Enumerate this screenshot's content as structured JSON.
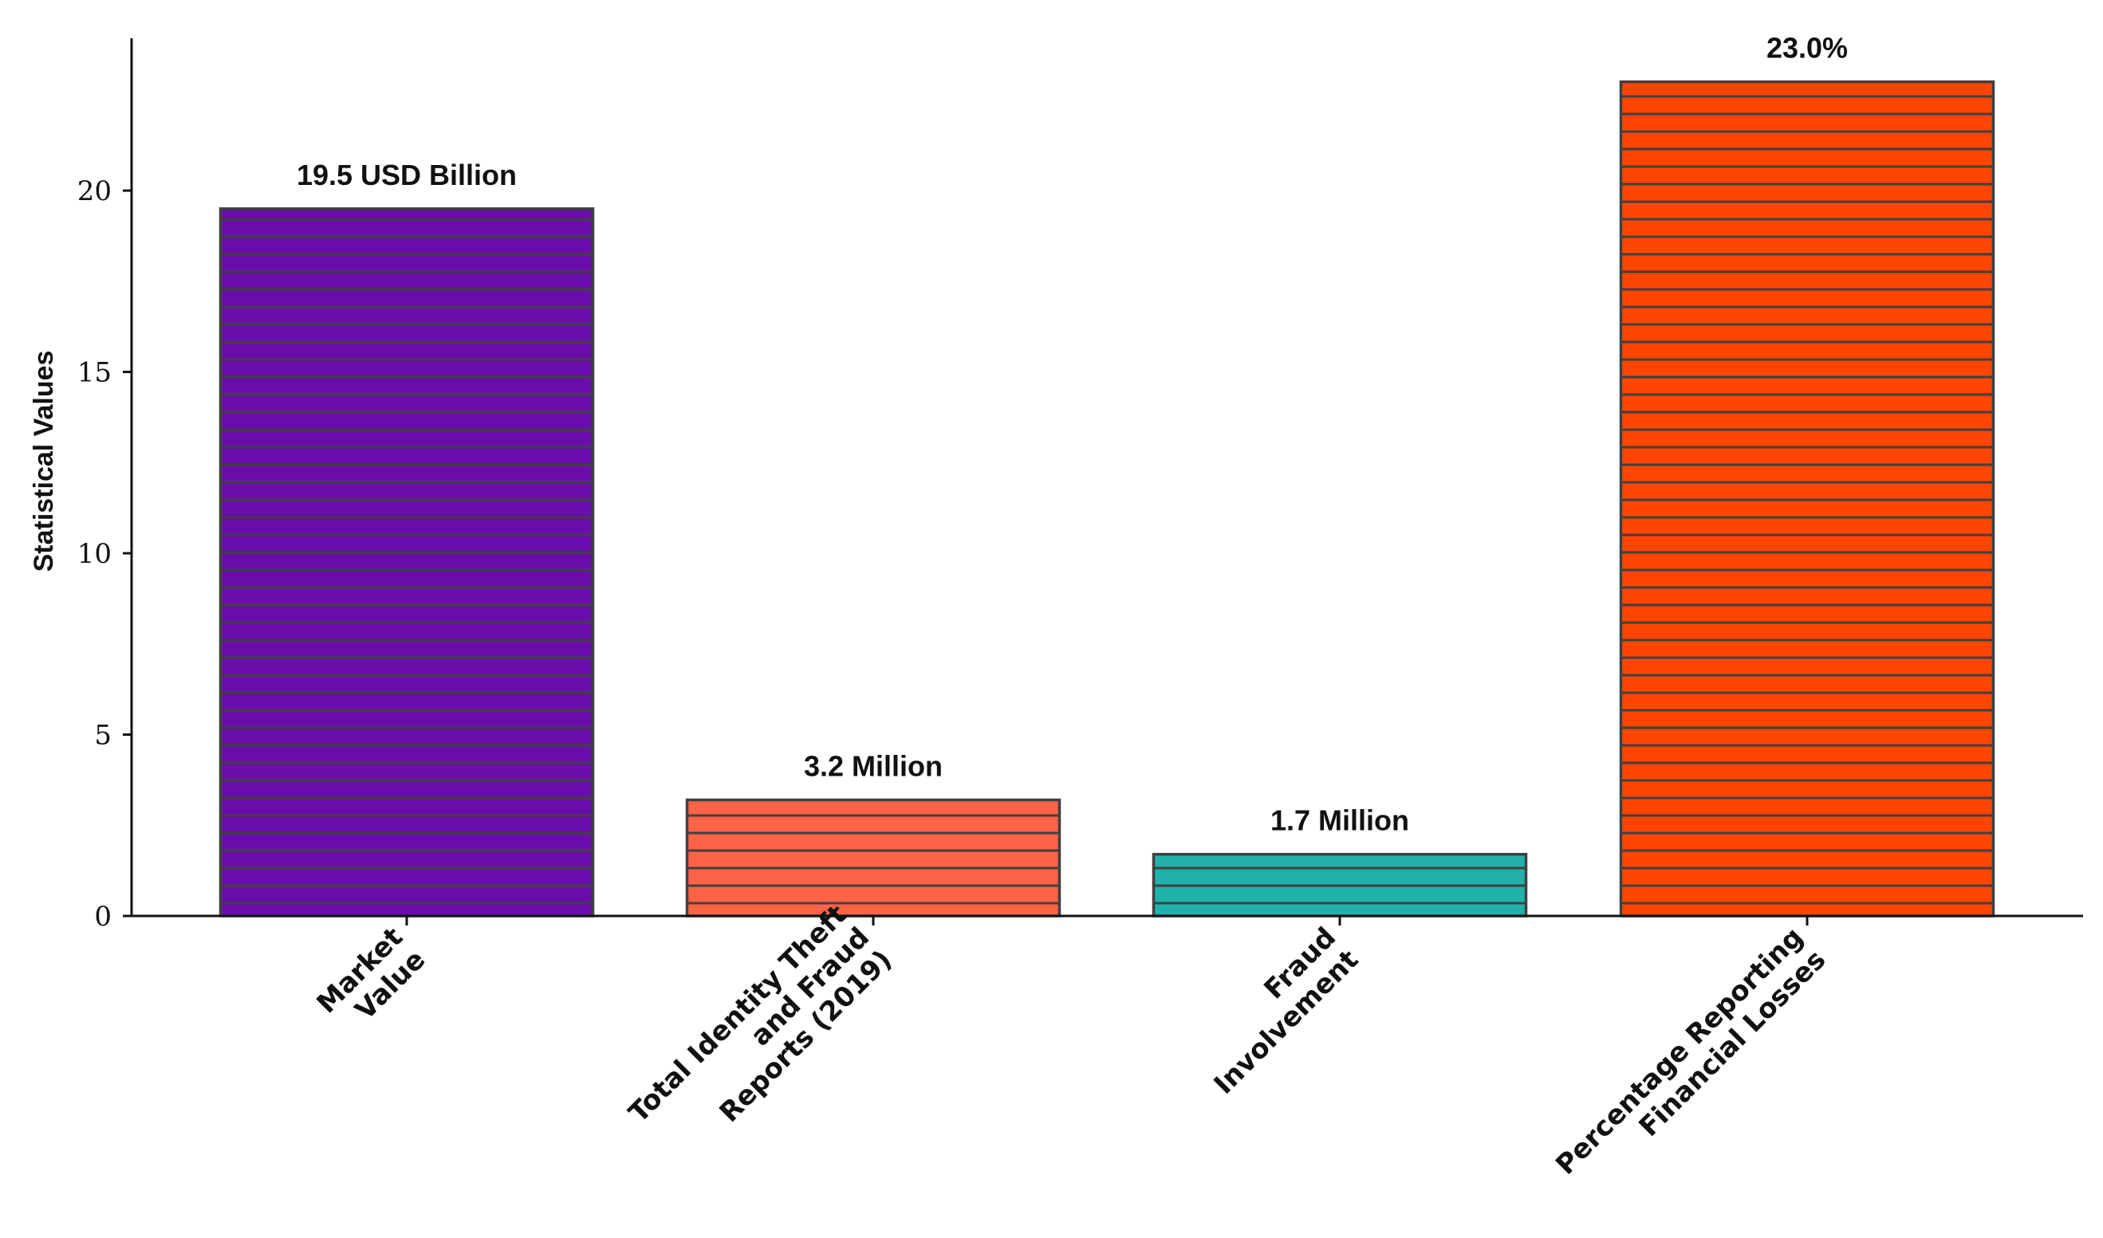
{
  "chart_data": {
    "type": "bar",
    "title": "",
    "xlabel": "",
    "ylabel": "Statistical Values",
    "ylim": [
      0,
      24.2
    ],
    "yticks": [
      0,
      5,
      10,
      15,
      20
    ],
    "grid": false,
    "categories": [
      [
        "Market",
        "Value"
      ],
      [
        "Total Identity Theft",
        "and Fraud",
        "Reports (2019)"
      ],
      [
        "Fraud",
        "Involvement"
      ],
      [
        "Percentage Reporting",
        "Financial Losses"
      ]
    ],
    "values": [
      19.5,
      3.2,
      1.7,
      23.0
    ],
    "data_labels": [
      "19.5 USD Billion",
      "3.2 Million",
      "1.7 Million",
      "23.0%"
    ],
    "colors": [
      "#6a0dad",
      "#ff6347",
      "#20b2aa",
      "#ff4500"
    ],
    "edge_color": "#404040",
    "hatch": "horizontal-lines"
  }
}
